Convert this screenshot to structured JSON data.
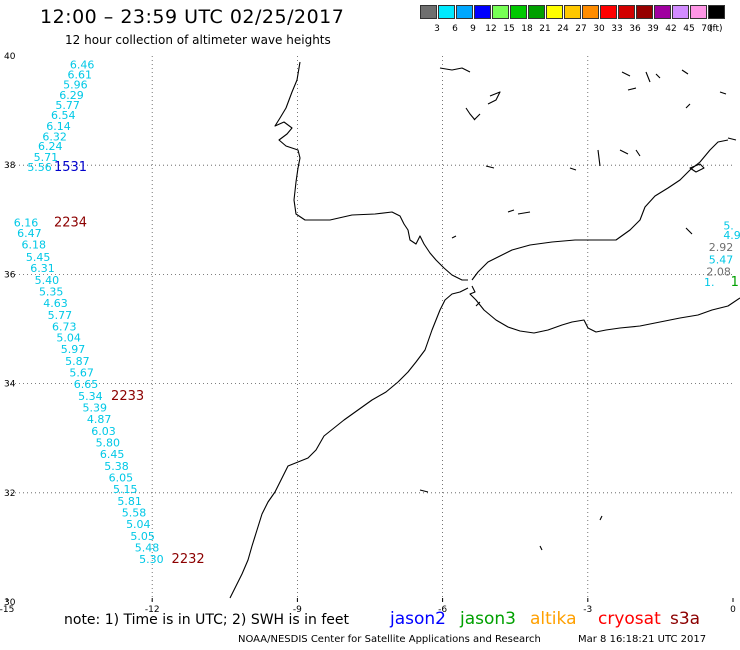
{
  "header": {
    "title": "12:00 – 23:59 UTC 02/25/2017",
    "subtitle": "12 hour collection of altimeter wave heights"
  },
  "legend": {
    "unit": "(ft)",
    "items": [
      {
        "label": "3",
        "color": "#6f6f6f"
      },
      {
        "label": "6",
        "color": "#00eaff"
      },
      {
        "label": "9",
        "color": "#00a8ff"
      },
      {
        "label": "12",
        "color": "#0000ff"
      },
      {
        "label": "15",
        "color": "#77ff55"
      },
      {
        "label": "18",
        "color": "#00c800"
      },
      {
        "label": "21",
        "color": "#00a000"
      },
      {
        "label": "24",
        "color": "#ffff00"
      },
      {
        "label": "27",
        "color": "#ffc800"
      },
      {
        "label": "30",
        "color": "#ff8c00"
      },
      {
        "label": "33",
        "color": "#ff0000"
      },
      {
        "label": "36",
        "color": "#d20000"
      },
      {
        "label": "39",
        "color": "#960000"
      },
      {
        "label": "42",
        "color": "#a000a0"
      },
      {
        "label": "45",
        "color": "#d28cff"
      },
      {
        "label": "70",
        "color": "#ff96e6"
      },
      {
        "label": "",
        "color": "#000000"
      }
    ]
  },
  "axes": {
    "x_ticks": [
      {
        "value": -15,
        "label": "-15"
      },
      {
        "value": -12,
        "label": "-12"
      },
      {
        "value": -9,
        "label": "-9"
      },
      {
        "value": -6,
        "label": "-6"
      },
      {
        "value": -3,
        "label": "-3"
      },
      {
        "value": 0,
        "label": "0"
      }
    ],
    "y_ticks": [
      {
        "value": 40,
        "label": "40"
      },
      {
        "value": 38,
        "label": "38"
      },
      {
        "value": 36,
        "label": "36"
      },
      {
        "value": 34,
        "label": "34"
      },
      {
        "value": 32,
        "label": "32"
      },
      {
        "value": 30,
        "label": "30"
      }
    ]
  },
  "wave_labels": [
    {
      "lon": -13.7,
      "lat": 39.84,
      "text": "6.46",
      "color": "#00c8e6"
    },
    {
      "lon": -13.75,
      "lat": 39.66,
      "text": "6.61",
      "color": "#00c8e6"
    },
    {
      "lon": -13.84,
      "lat": 39.48,
      "text": "5.96",
      "color": "#00c8e6"
    },
    {
      "lon": -13.92,
      "lat": 39.29,
      "text": "6.29",
      "color": "#00c8e6"
    },
    {
      "lon": -14.0,
      "lat": 39.1,
      "text": "5.77",
      "color": "#00c8e6"
    },
    {
      "lon": -14.09,
      "lat": 38.92,
      "text": "6.54",
      "color": "#00c8e6"
    },
    {
      "lon": -14.19,
      "lat": 38.72,
      "text": "6.14",
      "color": "#00c8e6"
    },
    {
      "lon": -14.27,
      "lat": 38.53,
      "text": "6.32",
      "color": "#00c8e6"
    },
    {
      "lon": -14.36,
      "lat": 38.35,
      "text": "6.24",
      "color": "#00c8e6"
    },
    {
      "lon": -14.45,
      "lat": 38.15,
      "text": "5.71",
      "color": "#00c8e6"
    },
    {
      "lon": -14.58,
      "lat": 37.97,
      "text": "5.56",
      "color": "#00c8e6"
    },
    {
      "lon": -14.03,
      "lat": 37.97,
      "text": "1531",
      "color": "#0000cc",
      "time": true
    },
    {
      "lon": -14.86,
      "lat": 36.95,
      "text": "6.16",
      "color": "#00c8e6"
    },
    {
      "lon": -14.03,
      "lat": 36.95,
      "text": "2234",
      "color": "#8c0000",
      "time": true
    },
    {
      "lon": -14.79,
      "lat": 36.76,
      "text": "6.47",
      "color": "#00c8e6"
    },
    {
      "lon": -14.7,
      "lat": 36.55,
      "text": "6.18",
      "color": "#00c8e6"
    },
    {
      "lon": -14.61,
      "lat": 36.32,
      "text": "5.45",
      "color": "#00c8e6"
    },
    {
      "lon": -14.52,
      "lat": 36.12,
      "text": "6.31",
      "color": "#00c8e6"
    },
    {
      "lon": -14.43,
      "lat": 35.9,
      "text": "5.40",
      "color": "#00c8e6"
    },
    {
      "lon": -14.34,
      "lat": 35.69,
      "text": "5.35",
      "color": "#00c8e6"
    },
    {
      "lon": -14.25,
      "lat": 35.48,
      "text": "4.63",
      "color": "#00c8e6"
    },
    {
      "lon": -14.16,
      "lat": 35.26,
      "text": "5.77",
      "color": "#00c8e6"
    },
    {
      "lon": -14.07,
      "lat": 35.05,
      "text": "6.73",
      "color": "#00c8e6"
    },
    {
      "lon": -13.98,
      "lat": 34.84,
      "text": "5.04",
      "color": "#00c8e6"
    },
    {
      "lon": -13.89,
      "lat": 34.63,
      "text": "5.97",
      "color": "#00c8e6"
    },
    {
      "lon": -13.8,
      "lat": 34.41,
      "text": "5.87",
      "color": "#00c8e6"
    },
    {
      "lon": -13.71,
      "lat": 34.2,
      "text": "5.67",
      "color": "#00c8e6"
    },
    {
      "lon": -13.62,
      "lat": 33.99,
      "text": "6.65",
      "color": "#00c8e6"
    },
    {
      "lon": -13.53,
      "lat": 33.77,
      "text": "5.34",
      "color": "#00c8e6"
    },
    {
      "lon": -12.85,
      "lat": 33.77,
      "text": "2233",
      "color": "#8c0000",
      "time": true
    },
    {
      "lon": -13.44,
      "lat": 33.56,
      "text": "5.39",
      "color": "#00c8e6"
    },
    {
      "lon": -13.35,
      "lat": 33.35,
      "text": "4.87",
      "color": "#00c8e6"
    },
    {
      "lon": -13.26,
      "lat": 33.13,
      "text": "6.03",
      "color": "#00c8e6"
    },
    {
      "lon": -13.17,
      "lat": 32.92,
      "text": "5.80",
      "color": "#00c8e6"
    },
    {
      "lon": -13.08,
      "lat": 32.71,
      "text": "6.45",
      "color": "#00c8e6"
    },
    {
      "lon": -12.99,
      "lat": 32.49,
      "text": "5.38",
      "color": "#00c8e6"
    },
    {
      "lon": -12.9,
      "lat": 32.28,
      "text": "6.05",
      "color": "#00c8e6"
    },
    {
      "lon": -12.81,
      "lat": 32.07,
      "text": "5.15",
      "color": "#00c8e6"
    },
    {
      "lon": -12.72,
      "lat": 31.85,
      "text": "5.81",
      "color": "#00c8e6"
    },
    {
      "lon": -12.63,
      "lat": 31.64,
      "text": "5.58",
      "color": "#00c8e6"
    },
    {
      "lon": -12.54,
      "lat": 31.43,
      "text": "5.04",
      "color": "#00c8e6"
    },
    {
      "lon": -12.45,
      "lat": 31.21,
      "text": "5.05",
      "color": "#00c8e6"
    },
    {
      "lon": -12.36,
      "lat": 31.0,
      "text": "5.48",
      "color": "#00c8e6"
    },
    {
      "lon": -12.27,
      "lat": 30.79,
      "text": "5.30",
      "color": "#00c8e6"
    },
    {
      "lon": -11.6,
      "lat": 30.79,
      "text": "2232",
      "color": "#8c0000",
      "time": true
    },
    {
      "lon": -0.2,
      "lat": 36.9,
      "text": "5.",
      "color": "#00c8e6"
    },
    {
      "lon": -0.2,
      "lat": 36.72,
      "text": "4.9",
      "color": "#00c8e6"
    },
    {
      "lon": -0.5,
      "lat": 36.5,
      "text": "2.92",
      "color": "#6f6f6f"
    },
    {
      "lon": -0.5,
      "lat": 36.27,
      "text": "5.47",
      "color": "#00c8e6"
    },
    {
      "lon": -0.55,
      "lat": 36.05,
      "text": "2.08",
      "color": "#6f6f6f"
    },
    {
      "lon": -0.6,
      "lat": 35.86,
      "text": "1.",
      "color": "#00c8e6"
    },
    {
      "lon": -0.05,
      "lat": 35.86,
      "text": "1",
      "color": "#00a000",
      "time": true
    }
  ],
  "footer": {
    "note": "note: 1) Time is in UTC; 2) SWH is in feet",
    "satellites": [
      {
        "name": "jason2",
        "color": "#0000ff"
      },
      {
        "name": "jason3",
        "color": "#00a000"
      },
      {
        "name": "altika",
        "color": "#ffa000"
      },
      {
        "name": "cryosat",
        "color": "#ff0000"
      },
      {
        "name": "s3a",
        "color": "#8c0000"
      }
    ],
    "credit": "NOAA/NESDIS Center for Satellite Applications and Research",
    "timestamp": "Mar  8 16:18:21 UTC 2017"
  }
}
